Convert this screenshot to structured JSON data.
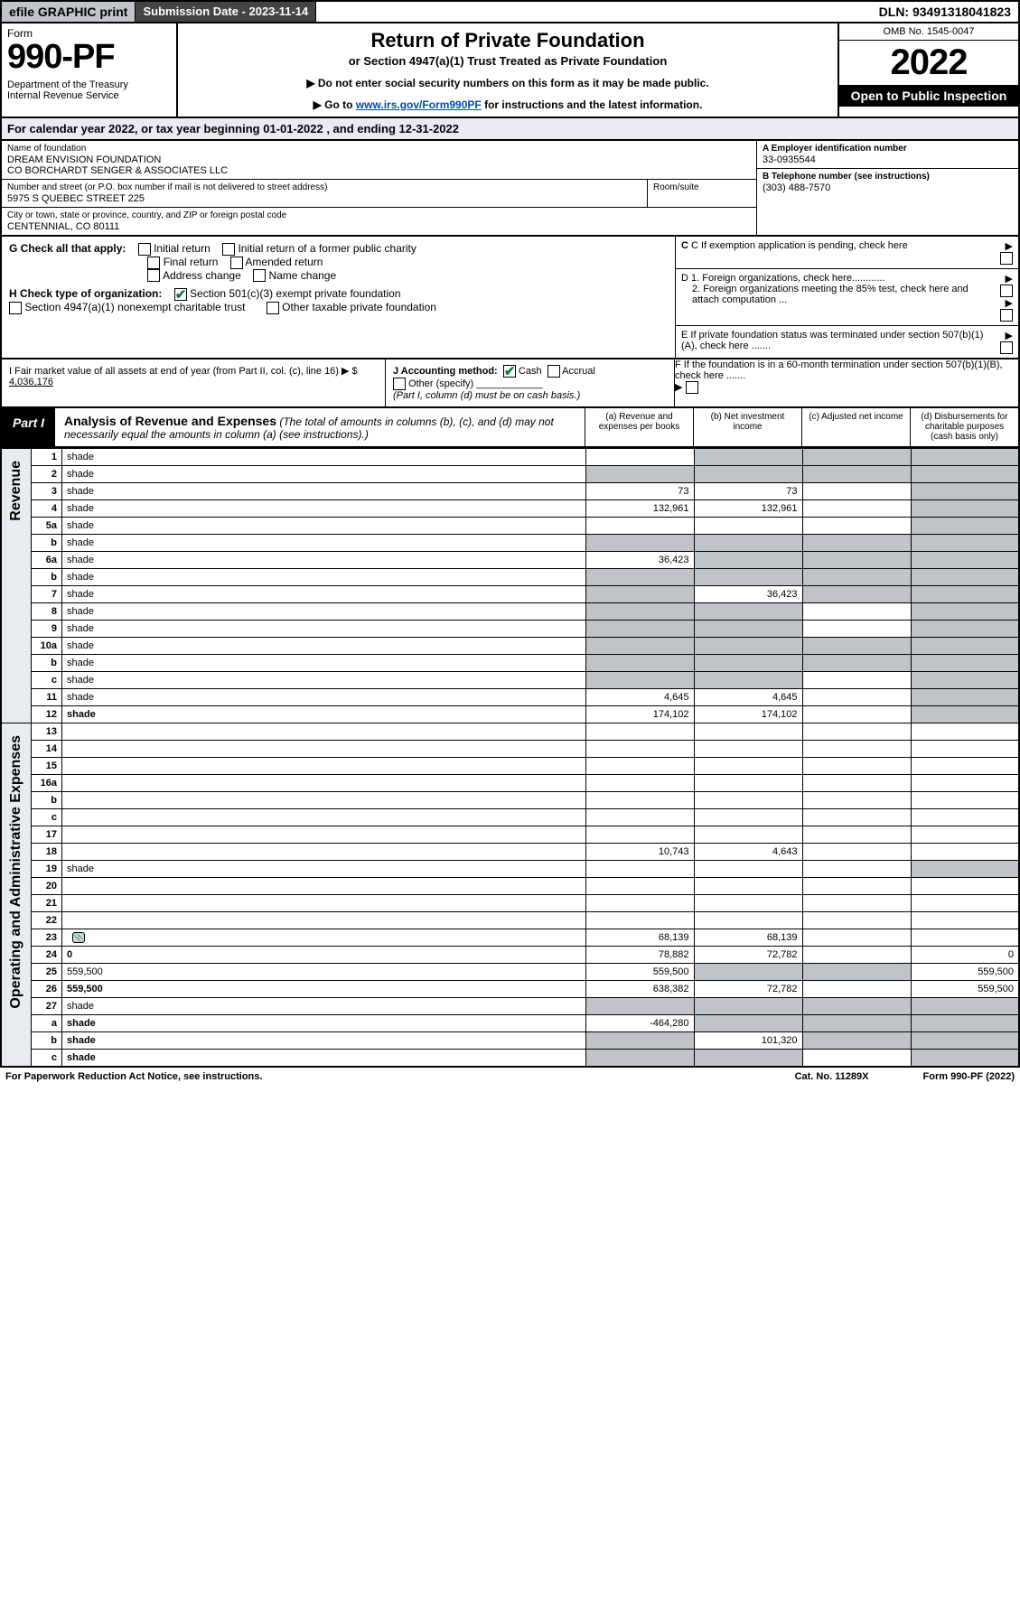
{
  "topbar": {
    "efile": "efile GRAPHIC print",
    "submission": "Submission Date - 2023-11-14",
    "dln": "DLN: 93491318041823"
  },
  "header": {
    "form_label": "Form",
    "form_number": "990-PF",
    "dept": "Department of the Treasury\nInternal Revenue Service",
    "title": "Return of Private Foundation",
    "subtitle": "or Section 4947(a)(1) Trust Treated as Private Foundation",
    "instr1": "▶ Do not enter social security numbers on this form as it may be made public.",
    "instr2_pre": "▶ Go to ",
    "instr2_link": "www.irs.gov/Form990PF",
    "instr2_post": " for instructions and the latest information.",
    "omb": "OMB No. 1545-0047",
    "year": "2022",
    "open": "Open to Public Inspection"
  },
  "cal_year": "For calendar year 2022, or tax year beginning 01-01-2022          , and ending 12-31-2022",
  "identity": {
    "name_label": "Name of foundation",
    "name_val": "DREAM ENVISION FOUNDATION\nCO BORCHARDT SENGER & ASSOCIATES LLC",
    "addr_label": "Number and street (or P.O. box number if mail is not delivered to street address)",
    "addr_val": "5975 S QUEBEC STREET 225",
    "room_label": "Room/suite",
    "city_label": "City or town, state or province, country, and ZIP or foreign postal code",
    "city_val": "CENTENNIAL, CO  80111",
    "ein_label": "A Employer identification number",
    "ein_val": "33-0935544",
    "tel_label": "B Telephone number (see instructions)",
    "tel_val": "(303) 488-7570",
    "c_label": "C If exemption application is pending, check here",
    "d1": "D 1. Foreign organizations, check here............",
    "d2": "2. Foreign organizations meeting the 85% test, check here and attach computation ...",
    "e_label": "E  If private foundation status was terminated under section 507(b)(1)(A), check here .......",
    "f_label": "F  If the foundation is in a 60-month termination under section 507(b)(1)(B), check here ......."
  },
  "g": {
    "label": "G Check all that apply:",
    "opts": [
      "Initial return",
      "Initial return of a former public charity",
      "Final return",
      "Amended return",
      "Address change",
      "Name change"
    ]
  },
  "h": {
    "label": "H Check type of organization:",
    "opt1": "Section 501(c)(3) exempt private foundation",
    "opt2": "Section 4947(a)(1) nonexempt charitable trust",
    "opt3": "Other taxable private foundation"
  },
  "i": {
    "label": "I Fair market value of all assets at end of year (from Part II, col. (c), line 16) ▶ $",
    "val": "4,036,176"
  },
  "j": {
    "label": "J Accounting method:",
    "cash": "Cash",
    "accrual": "Accrual",
    "other": "Other (specify)",
    "note": "(Part I, column (d) must be on cash basis.)"
  },
  "part1": {
    "tag": "Part I",
    "title": "Analysis of Revenue and Expenses",
    "title_note": " (The total of amounts in columns (b), (c), and (d) may not necessarily equal the amounts in column (a) (see instructions).)",
    "col_a": "(a)  Revenue and expenses per books",
    "col_b": "(b)  Net investment income",
    "col_c": "(c)  Adjusted net income",
    "col_d": "(d)  Disbursements for charitable purposes (cash basis only)"
  },
  "side_labels": {
    "revenue": "Revenue",
    "opex": "Operating and Administrative Expenses"
  },
  "rows": [
    {
      "n": "1",
      "d": "shade",
      "a": "",
      "b": "shade",
      "c": "shade"
    },
    {
      "n": "2",
      "d": "shade",
      "a": "shade",
      "b": "shade",
      "c": "shade"
    },
    {
      "n": "3",
      "d": "shade",
      "a": "73",
      "b": "73",
      "c": ""
    },
    {
      "n": "4",
      "d": "shade",
      "a": "132,961",
      "b": "132,961",
      "c": ""
    },
    {
      "n": "5a",
      "d": "shade",
      "a": "",
      "b": "",
      "c": ""
    },
    {
      "n": "b",
      "d": "shade",
      "a": "shade",
      "b": "shade",
      "c": "shade"
    },
    {
      "n": "6a",
      "d": "shade",
      "a": "36,423",
      "b": "shade",
      "c": "shade"
    },
    {
      "n": "b",
      "d": "shade",
      "a": "shade",
      "b": "shade",
      "c": "shade"
    },
    {
      "n": "7",
      "d": "shade",
      "a": "shade",
      "b": "36,423",
      "c": "shade"
    },
    {
      "n": "8",
      "d": "shade",
      "a": "shade",
      "b": "shade",
      "c": ""
    },
    {
      "n": "9",
      "d": "shade",
      "a": "shade",
      "b": "shade",
      "c": ""
    },
    {
      "n": "10a",
      "d": "shade",
      "a": "shade",
      "b": "shade",
      "c": "shade"
    },
    {
      "n": "b",
      "d": "shade",
      "a": "shade",
      "b": "shade",
      "c": "shade"
    },
    {
      "n": "c",
      "d": "shade",
      "a": "shade",
      "b": "shade",
      "c": ""
    },
    {
      "n": "11",
      "d": "shade",
      "a": "4,645",
      "b": "4,645",
      "c": ""
    },
    {
      "n": "12",
      "d": "shade",
      "bold": true,
      "a": "174,102",
      "b": "174,102",
      "c": ""
    },
    {
      "n": "13",
      "d": "",
      "a": "",
      "b": "",
      "c": ""
    },
    {
      "n": "14",
      "d": "",
      "a": "",
      "b": "",
      "c": ""
    },
    {
      "n": "15",
      "d": "",
      "a": "",
      "b": "",
      "c": ""
    },
    {
      "n": "16a",
      "d": "",
      "a": "",
      "b": "",
      "c": ""
    },
    {
      "n": "b",
      "d": "",
      "a": "",
      "b": "",
      "c": ""
    },
    {
      "n": "c",
      "d": "",
      "a": "",
      "b": "",
      "c": ""
    },
    {
      "n": "17",
      "d": "",
      "a": "",
      "b": "",
      "c": ""
    },
    {
      "n": "18",
      "d": "",
      "a": "10,743",
      "b": "4,643",
      "c": ""
    },
    {
      "n": "19",
      "d": "shade",
      "a": "",
      "b": "",
      "c": ""
    },
    {
      "n": "20",
      "d": "",
      "a": "",
      "b": "",
      "c": ""
    },
    {
      "n": "21",
      "d": "",
      "a": "",
      "b": "",
      "c": ""
    },
    {
      "n": "22",
      "d": "",
      "a": "",
      "b": "",
      "c": ""
    },
    {
      "n": "23",
      "d": "",
      "icon": true,
      "a": "68,139",
      "b": "68,139",
      "c": ""
    },
    {
      "n": "24",
      "d": "0",
      "bold": true,
      "a": "78,882",
      "b": "72,782",
      "c": ""
    },
    {
      "n": "25",
      "d": "559,500",
      "a": "559,500",
      "b": "shade",
      "c": "shade"
    },
    {
      "n": "26",
      "d": "559,500",
      "bold": true,
      "a": "638,382",
      "b": "72,782",
      "c": ""
    },
    {
      "n": "27",
      "d": "shade",
      "a": "shade",
      "b": "shade",
      "c": "shade"
    },
    {
      "n": "a",
      "d": "shade",
      "bold": true,
      "a": "-464,280",
      "b": "shade",
      "c": "shade"
    },
    {
      "n": "b",
      "d": "shade",
      "bold": true,
      "a": "shade",
      "b": "101,320",
      "c": "shade"
    },
    {
      "n": "c",
      "d": "shade",
      "bold": true,
      "a": "shade",
      "b": "shade",
      "c": ""
    }
  ],
  "footer": {
    "left": "For Paperwork Reduction Act Notice, see instructions.",
    "mid": "Cat. No. 11289X",
    "right": "Form 990-PF (2022)"
  },
  "colors": {
    "shade": "#bfc4c9",
    "grey_bg": "#e9ecef",
    "link": "#004bb5",
    "check_green": "#0a7d2d"
  }
}
